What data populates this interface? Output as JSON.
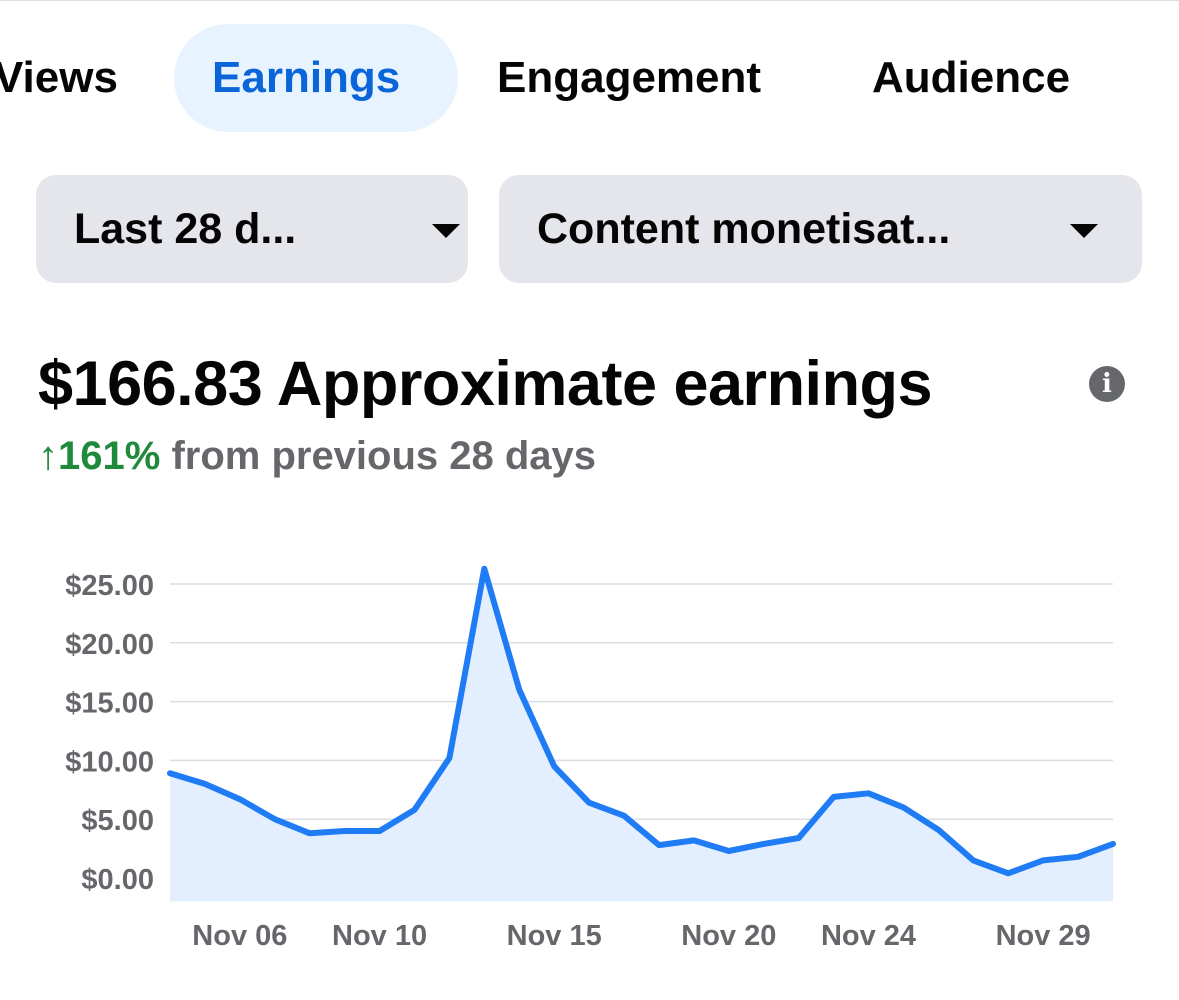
{
  "tabs": [
    {
      "label": "Views",
      "active": false
    },
    {
      "label": "Earnings",
      "active": true
    },
    {
      "label": "Engagement",
      "active": false
    },
    {
      "label": "Audience",
      "active": false
    }
  ],
  "filters": {
    "date_range": "Last 28 d...",
    "metric": "Content monetisat..."
  },
  "summary": {
    "amount": "$166.83",
    "label": "Approximate earnings",
    "change_arrow": "↑",
    "change_value": "161%",
    "change_text": "from previous 28 days"
  },
  "colors": {
    "accent": "#0a66d8",
    "line": "#1f7cf5",
    "area": "#e3efff",
    "positive": "#1f8a3b",
    "muted": "#65676b"
  },
  "chart_data": {
    "type": "area",
    "title": "",
    "xlabel": "",
    "ylabel": "",
    "x": [
      "Nov 04",
      "Nov 05",
      "Nov 06",
      "Nov 07",
      "Nov 08",
      "Nov 09",
      "Nov 10",
      "Nov 11",
      "Nov 12",
      "Nov 13",
      "Nov 14",
      "Nov 15",
      "Nov 16",
      "Nov 17",
      "Nov 18",
      "Nov 19",
      "Nov 20",
      "Nov 21",
      "Nov 22",
      "Nov 23",
      "Nov 24",
      "Nov 25",
      "Nov 26",
      "Nov 27",
      "Nov 28",
      "Nov 29",
      "Nov 30",
      "Dec 01"
    ],
    "series": [
      {
        "name": "Approximate earnings",
        "values": [
          8.9,
          8.0,
          6.7,
          5.0,
          3.8,
          4.0,
          4.0,
          5.8,
          10.2,
          26.3,
          16.0,
          9.5,
          6.4,
          5.3,
          2.8,
          3.2,
          2.3,
          2.9,
          3.4,
          6.9,
          7.2,
          6.0,
          4.1,
          1.5,
          0.4,
          1.5,
          1.8,
          2.9
        ]
      }
    ],
    "x_tick_labels": [
      "Nov 06",
      "Nov 10",
      "Nov 15",
      "Nov 20",
      "Nov 24",
      "Nov 29"
    ],
    "y_tick_labels": [
      "$0.00",
      "$5.00",
      "$10.00",
      "$15.00",
      "$20.00",
      "$25.00"
    ],
    "y_ticks": [
      0,
      5,
      10,
      15,
      20,
      25
    ],
    "ylim": [
      -2,
      27
    ],
    "grid": true
  }
}
